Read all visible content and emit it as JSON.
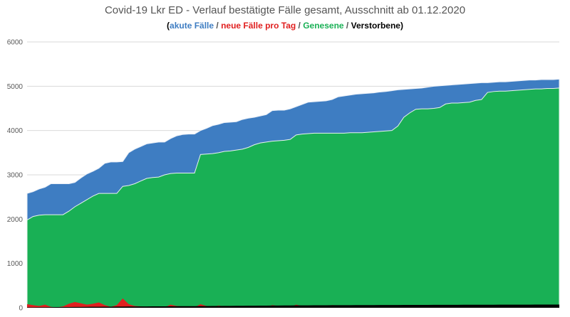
{
  "title": "Covid-19 Lkr ED - Verlauf bestätigte Fälle gesamt, Ausschnitt ab 01.12.2020",
  "legend": {
    "akute": "akute Fälle",
    "neue": "neue Fälle pro Tag",
    "genesene": "Genesene",
    "verstorbene": "Verstorbene",
    "separator": " / "
  },
  "colors": {
    "akute": "#3e7dc2",
    "neue": "#e02020",
    "genesene": "#19b055",
    "verstorbene": "#000000",
    "title": "#555555",
    "grid": "#d9d9d9"
  },
  "chart_data": {
    "type": "area",
    "title": "Covid-19 Lkr ED - Verlauf bestätigte Fälle gesamt, Ausschnitt ab 01.12.2020",
    "ylim": [
      0,
      6000
    ],
    "yticks": [
      0,
      1000,
      2000,
      3000,
      4000,
      5000,
      6000
    ],
    "grid": true,
    "legend_position": "top",
    "x_start": "01.12.2020",
    "series": [
      {
        "name": "akute Fälle",
        "stack": "total",
        "values": [
          2580,
          2620,
          2680,
          2720,
          2800,
          2800,
          2800,
          2800,
          2830,
          2930,
          3020,
          3080,
          3150,
          3260,
          3290,
          3290,
          3300,
          3500,
          3580,
          3640,
          3700,
          3720,
          3740,
          3740,
          3820,
          3880,
          3910,
          3920,
          3920,
          4000,
          4050,
          4110,
          4140,
          4180,
          4190,
          4200,
          4250,
          4280,
          4300,
          4330,
          4360,
          4450,
          4460,
          4460,
          4490,
          4540,
          4590,
          4640,
          4650,
          4660,
          4670,
          4700,
          4760,
          4780,
          4800,
          4820,
          4830,
          4840,
          4850,
          4870,
          4880,
          4900,
          4920,
          4930,
          4940,
          4950,
          4960,
          4980,
          5000,
          5010,
          5020,
          5030,
          5040,
          5050,
          5060,
          5070,
          5080,
          5080,
          5090,
          5100,
          5100,
          5110,
          5120,
          5130,
          5140,
          5140,
          5150,
          5150,
          5150,
          5160
        ]
      },
      {
        "name": "Genesene",
        "values": [
          1980,
          2060,
          2090,
          2100,
          2100,
          2100,
          2100,
          2180,
          2280,
          2360,
          2440,
          2520,
          2580,
          2580,
          2580,
          2580,
          2740,
          2760,
          2800,
          2860,
          2920,
          2940,
          2950,
          3000,
          3030,
          3040,
          3040,
          3040,
          3040,
          3460,
          3470,
          3480,
          3500,
          3530,
          3540,
          3560,
          3580,
          3620,
          3680,
          3720,
          3740,
          3760,
          3770,
          3780,
          3800,
          3900,
          3920,
          3930,
          3940,
          3940,
          3940,
          3940,
          3940,
          3940,
          3950,
          3950,
          3950,
          3960,
          3970,
          3980,
          3990,
          4000,
          4100,
          4300,
          4400,
          4480,
          4490,
          4490,
          4500,
          4520,
          4600,
          4620,
          4620,
          4630,
          4640,
          4680,
          4700,
          4860,
          4880,
          4890,
          4890,
          4900,
          4910,
          4920,
          4930,
          4940,
          4940,
          4950,
          4950,
          4960
        ]
      },
      {
        "name": "neue Fälle pro Tag",
        "values": [
          80,
          60,
          40,
          70,
          20,
          10,
          30,
          90,
          130,
          100,
          70,
          90,
          120,
          60,
          20,
          60,
          210,
          80,
          40,
          30,
          20,
          30,
          20,
          10,
          70,
          40,
          30,
          20,
          10,
          80,
          40,
          20,
          50,
          30,
          20,
          10,
          30,
          40,
          30,
          20,
          10,
          60,
          40,
          30,
          20,
          70,
          40,
          30,
          40,
          20,
          30,
          60,
          50,
          40,
          30,
          30,
          20,
          40,
          20,
          30,
          30,
          20,
          30,
          20,
          20,
          30,
          20,
          30,
          20,
          20,
          30,
          20,
          20,
          20,
          30,
          20,
          20,
          30,
          20,
          20,
          30,
          20,
          30,
          20,
          20,
          20,
          20,
          20,
          30,
          20
        ]
      },
      {
        "name": "Verstorbene",
        "values": [
          10,
          10,
          12,
          12,
          14,
          15,
          16,
          16,
          18,
          18,
          20,
          22,
          22,
          24,
          25,
          26,
          26,
          28,
          28,
          30,
          30,
          32,
          32,
          33,
          34,
          35,
          36,
          36,
          37,
          38,
          38,
          40,
          40,
          42,
          43,
          44,
          45,
          46,
          46,
          48,
          48,
          50,
          50,
          52,
          52,
          54,
          55,
          55,
          56,
          56,
          57,
          58,
          58,
          58,
          59,
          60,
          60,
          60,
          61,
          62,
          62,
          62,
          63,
          64,
          64,
          64,
          65,
          65,
          66,
          66,
          66,
          67,
          67,
          68,
          68,
          68,
          68,
          69,
          69,
          70,
          70,
          70,
          70,
          71,
          71,
          72,
          72,
          72,
          72,
          72
        ]
      }
    ]
  }
}
